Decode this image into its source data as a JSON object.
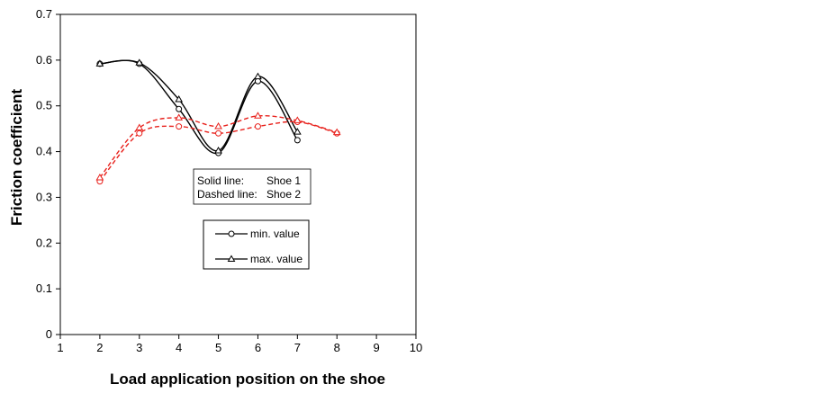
{
  "chart_data": {
    "type": "line",
    "title": "",
    "xlabel": "Load application position on the shoe",
    "ylabel": "Friction  coefficient",
    "xlim": [
      1,
      10
    ],
    "ylim": [
      0,
      0.7
    ],
    "xticks": [
      1,
      2,
      3,
      4,
      5,
      6,
      7,
      8,
      9,
      10
    ],
    "yticks": [
      0,
      0.1,
      0.2,
      0.3,
      0.4,
      0.5,
      0.6,
      0.7
    ],
    "ytick_labels": [
      "0",
      "0.1",
      "0.2",
      "0.3",
      "0.4",
      "0.5",
      "0.6",
      "0.7"
    ],
    "grid": false,
    "series": [
      {
        "shoe": "Shoe 1",
        "stat": "min. value",
        "marker": "circle",
        "line": "solid",
        "color": "#000000",
        "x": [
          2,
          3,
          4,
          5,
          6,
          7
        ],
        "y": [
          0.592,
          0.592,
          0.493,
          0.397,
          0.554,
          0.425
        ]
      },
      {
        "shoe": "Shoe 1",
        "stat": "max. value",
        "marker": "triangle",
        "line": "solid",
        "color": "#000000",
        "x": [
          2,
          3,
          4,
          5,
          6,
          7
        ],
        "y": [
          0.592,
          0.594,
          0.514,
          0.402,
          0.564,
          0.443
        ]
      },
      {
        "shoe": "Shoe 2",
        "stat": "min. value",
        "marker": "circle",
        "line": "dashed",
        "color": "#e8211c",
        "x": [
          2,
          3,
          4,
          5,
          6,
          7,
          8
        ],
        "y": [
          0.335,
          0.44,
          0.455,
          0.44,
          0.455,
          0.465,
          0.44
        ]
      },
      {
        "shoe": "Shoe 2",
        "stat": "max. value",
        "marker": "triangle",
        "line": "dashed",
        "color": "#e8211c",
        "x": [
          2,
          3,
          4,
          5,
          6,
          7,
          8
        ],
        "y": [
          0.343,
          0.452,
          0.474,
          0.455,
          0.478,
          0.468,
          0.442
        ]
      }
    ],
    "annotation": {
      "lines": [
        {
          "label": "Solid line:",
          "value": "Shoe 1"
        },
        {
          "label": "Dashed line:",
          "value": "Shoe 2"
        }
      ]
    },
    "legend": {
      "placement": "center",
      "entries": [
        {
          "label": "min. value",
          "marker": "circle"
        },
        {
          "label": "max. value",
          "marker": "triangle"
        }
      ]
    }
  }
}
